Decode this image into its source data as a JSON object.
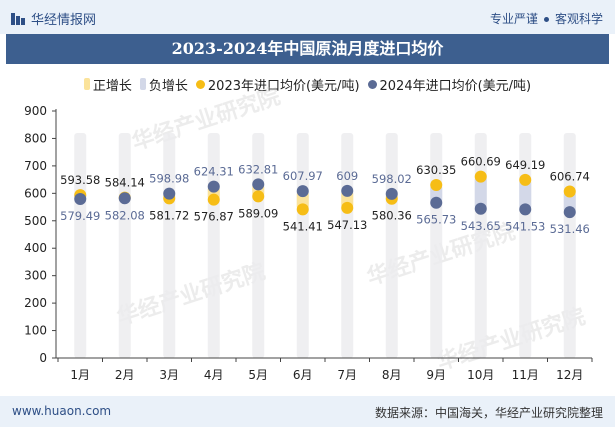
{
  "header": {
    "brand": "华经情报网",
    "tagline_left": "专业严谨",
    "tagline_right": "客观科学"
  },
  "watermark": "华经产业研究院",
  "footer": {
    "website": "www.huaon.com",
    "source": "数据来源：中国海关，华经产业研究院整理"
  },
  "colors": {
    "positive": "#fbe39b",
    "negative": "#d3d8e8",
    "series2023": "#f6bd16",
    "series2024": "#5b6b95",
    "titlebar": "#3d5f8f"
  },
  "chart_data": {
    "type": "line",
    "title": "2023-2024年中国原油月度进口均价",
    "categories": [
      "1月",
      "2月",
      "3月",
      "4月",
      "5月",
      "6月",
      "7月",
      "8月",
      "9月",
      "10月",
      "11月",
      "12月"
    ],
    "ylim": [
      0,
      900
    ],
    "yticks": [
      0,
      100,
      200,
      300,
      400,
      500,
      600,
      700,
      800,
      900
    ],
    "legend": [
      "正增长",
      "负增长",
      "2023年进口均价(美元/吨)",
      "2024年进口均价(美元/吨)"
    ],
    "legend_position": "top",
    "series": [
      {
        "name": "2023年进口均价(美元/吨)",
        "values": [
          593.58,
          584.14,
          581.72,
          576.87,
          589.09,
          541.41,
          547.13,
          580.36,
          630.35,
          660.69,
          649.19,
          606.74
        ]
      },
      {
        "name": "2024年进口均价(美元/吨)",
        "values": [
          579.49,
          582.08,
          598.98,
          624.31,
          632.81,
          607.97,
          609,
          598.02,
          565.73,
          543.65,
          541.53,
          531.46
        ]
      }
    ],
    "growth": [
      "negative",
      "negative",
      "positive",
      "positive",
      "positive",
      "positive",
      "positive",
      "positive",
      "negative",
      "negative",
      "negative",
      "negative"
    ]
  }
}
